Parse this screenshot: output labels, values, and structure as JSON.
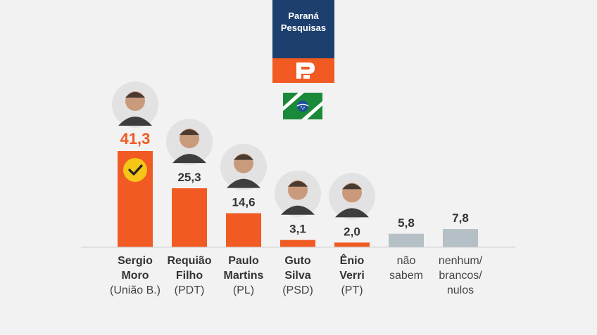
{
  "brand": {
    "line1": "Paraná",
    "line2": "Pesquisas",
    "navy": "#1c3f6e",
    "orange": "#f15a22",
    "logo_icon": "parana-pesquisas-p-icon",
    "flag_icon": "parana-flag-icon"
  },
  "colors": {
    "candidate_bar": "#f15a22",
    "other_bar": "#b4bfc6",
    "winner_value": "#f15a22",
    "value_text": "#333333",
    "check_badge": "#f5c518"
  },
  "chart_data": {
    "type": "bar",
    "categories": [
      {
        "line1": "Sergio",
        "line2": "Moro",
        "line3": "(União B.)"
      },
      {
        "line1": "Requião",
        "line2": "Filho",
        "line3": "(PDT)"
      },
      {
        "line1": "Paulo",
        "line2": "Martins",
        "line3": "(PL)"
      },
      {
        "line1": "Guto",
        "line2": "Silva",
        "line3": "(PSD)"
      },
      {
        "line1": "Ênio",
        "line2": "Verri",
        "line3": "(PT)"
      },
      {
        "line1": "não",
        "line2": "sabem",
        "line3": ""
      },
      {
        "line1": "nenhum/",
        "line2": "brancos/",
        "line3": "nulos"
      }
    ],
    "values": [
      41.3,
      25.3,
      14.6,
      3.1,
      2.0,
      5.8,
      7.8
    ],
    "value_labels": [
      "41,3",
      "25,3",
      "14,6",
      "3,1",
      "2,0",
      "5,8",
      "7,8"
    ],
    "bar_kind": [
      "candidate",
      "candidate",
      "candidate",
      "candidate",
      "candidate",
      "other",
      "other"
    ],
    "has_photo": [
      true,
      true,
      true,
      true,
      true,
      false,
      false
    ],
    "winner_index": 0,
    "winner_icon": "checkmark-icon",
    "ylim": [
      0,
      41.3
    ]
  }
}
